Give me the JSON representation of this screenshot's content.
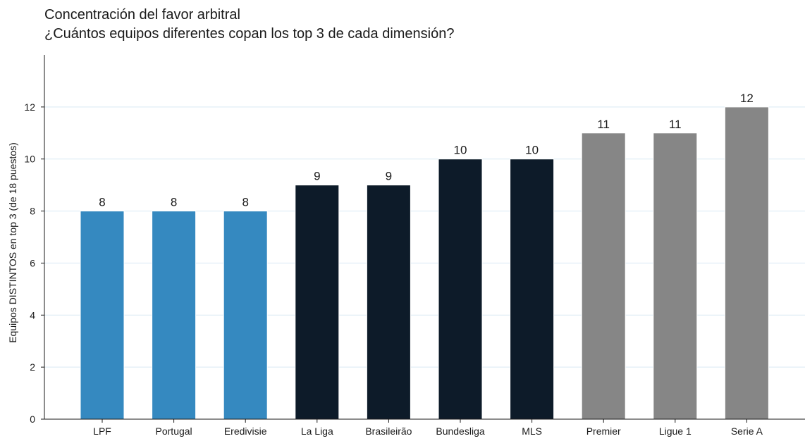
{
  "chart_data": {
    "type": "bar",
    "title": "Concentración del favor arbitral",
    "subtitle": "¿Cuántos equipos diferentes copan los top 3 de cada dimensión?",
    "xlabel": "",
    "ylabel": "Equipos DISTINTOS en top 3 (de 18 puestos)",
    "ylim": [
      0,
      14
    ],
    "yticks": [
      0,
      2,
      4,
      6,
      8,
      10,
      12
    ],
    "grid": true,
    "categories": [
      "LPF",
      "Portugal",
      "Eredivisie",
      "La Liga",
      "Brasileirão",
      "Bundesliga",
      "MLS",
      "Premier",
      "Ligue 1",
      "Serie A"
    ],
    "values": [
      8,
      8,
      8,
      9,
      9,
      10,
      10,
      11,
      11,
      12
    ],
    "bar_colors": [
      "#3589c0",
      "#3589c0",
      "#3589c0",
      "#0d1b29",
      "#0d1b29",
      "#0d1b29",
      "#0d1b29",
      "#868686",
      "#868686",
      "#868686"
    ],
    "data_labels": [
      "8",
      "8",
      "8",
      "9",
      "9",
      "10",
      "10",
      "11",
      "11",
      "12"
    ]
  },
  "colors": {
    "grid": "#d9e9f4",
    "axis": "#1a1a1a",
    "text": "#1a1a1a"
  }
}
